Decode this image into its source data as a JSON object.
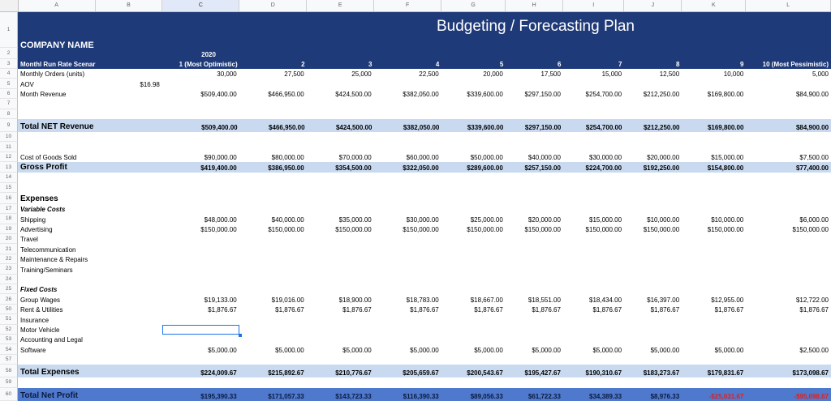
{
  "columns": [
    "A",
    "B",
    "C",
    "D",
    "E",
    "F",
    "G",
    "H",
    "I",
    "J",
    "K",
    "L"
  ],
  "title": "Budgeting / Forecasting Plan",
  "company": "COMPANY NAME",
  "year": "2020",
  "rows": [
    {
      "n": "1",
      "type": "header"
    },
    {
      "n": "2",
      "type": "header"
    },
    {
      "n": "3",
      "type": "header",
      "a": "Monthl Run Rate Scenarios",
      "vals": [
        "1 (Most Optimistic)",
        "2",
        "3",
        "4",
        "5",
        "6",
        "7",
        "8",
        "9",
        "10 (Most Pessimistic)"
      ]
    },
    {
      "n": "4",
      "a": "Monthly Orders (units)",
      "vals": [
        "30,000",
        "27,500",
        "25,000",
        "22,500",
        "20,000",
        "17,500",
        "15,000",
        "12,500",
        "10,000",
        "5,000"
      ]
    },
    {
      "n": "5",
      "a": "AOV",
      "b": "$16.98",
      "vals": []
    },
    {
      "n": "6",
      "a": "Month Revenue",
      "vals": [
        "$509,400.00",
        "$466,950.00",
        "$424,500.00",
        "$382,050.00",
        "$339,600.00",
        "$297,150.00",
        "$254,700.00",
        "$212,250.00",
        "$169,800.00",
        "$84,900.00"
      ]
    },
    {
      "n": "7",
      "vals": []
    },
    {
      "n": "8",
      "vals": []
    },
    {
      "n": "9",
      "style": "band",
      "a": "Total NET Revenue",
      "vals": [
        "$509,400.00",
        "$466,950.00",
        "$424,500.00",
        "$382,050.00",
        "$339,600.00",
        "$297,150.00",
        "$254,700.00",
        "$212,250.00",
        "$169,800.00",
        "$84,900.00"
      ]
    },
    {
      "n": "10",
      "vals": []
    },
    {
      "n": "11",
      "vals": []
    },
    {
      "n": "12",
      "a": "Cost of Goods Sold",
      "vals": [
        "$90,000.00",
        "$80,000.00",
        "$70,000.00",
        "$60,000.00",
        "$50,000.00",
        "$40,000.00",
        "$30,000.00",
        "$20,000.00",
        "$15,000.00",
        "$7,500.00"
      ]
    },
    {
      "n": "13",
      "style": "band",
      "a": "Gross Profit",
      "vals": [
        "$419,400.00",
        "$386,950.00",
        "$354,500.00",
        "$322,050.00",
        "$289,600.00",
        "$257,150.00",
        "$224,700.00",
        "$192,250.00",
        "$154,800.00",
        "$77,400.00"
      ]
    },
    {
      "n": "14",
      "vals": []
    },
    {
      "n": "15",
      "vals": []
    },
    {
      "n": "16",
      "style": "bold",
      "a": "Expenses",
      "vals": []
    },
    {
      "n": "17",
      "style": "ital",
      "a": "Variable Costs",
      "vals": []
    },
    {
      "n": "18",
      "a": "Shipping",
      "vals": [
        "$48,000.00",
        "$40,000.00",
        "$35,000.00",
        "$30,000.00",
        "$25,000.00",
        "$20,000.00",
        "$15,000.00",
        "$10,000.00",
        "$10,000.00",
        "$6,000.00"
      ]
    },
    {
      "n": "19",
      "a": "Advertising",
      "vals": [
        "$150,000.00",
        "$150,000.00",
        "$150,000.00",
        "$150,000.00",
        "$150,000.00",
        "$150,000.00",
        "$150,000.00",
        "$150,000.00",
        "$150,000.00",
        "$150,000.00"
      ]
    },
    {
      "n": "20",
      "a": "Travel",
      "vals": []
    },
    {
      "n": "21",
      "a": "Telecommunication",
      "vals": []
    },
    {
      "n": "22",
      "a": "Maintenance & Repairs",
      "vals": []
    },
    {
      "n": "23",
      "a": "Training/Seminars",
      "vals": []
    },
    {
      "n": "24",
      "vals": []
    },
    {
      "n": "25",
      "style": "ital",
      "a": "Fixed Costs",
      "vals": []
    },
    {
      "n": "26",
      "a": "Group Wages",
      "vals": [
        "$19,133.00",
        "$19,016.00",
        "$18,900.00",
        "$18,783.00",
        "$18,667.00",
        "$18,551.00",
        "$18,434.00",
        "$16,397.00",
        "$12,955.00",
        "$12,722.00"
      ]
    },
    {
      "n": "50",
      "a": "Rent & Utilities",
      "vals": [
        "$1,876.67",
        "$1,876.67",
        "$1,876.67",
        "$1,876.67",
        "$1,876.67",
        "$1,876.67",
        "$1,876.67",
        "$1,876.67",
        "$1,876.67",
        "$1,876.67"
      ]
    },
    {
      "n": "51",
      "a": "Insurance",
      "vals": []
    },
    {
      "n": "52",
      "a": "Motor Vehicle",
      "vals": [],
      "selected": true
    },
    {
      "n": "53",
      "a": "Accounting and Legal",
      "vals": []
    },
    {
      "n": "54",
      "a": "Software",
      "vals": [
        "$5,000.00",
        "$5,000.00",
        "$5,000.00",
        "$5,000.00",
        "$5,000.00",
        "$5,000.00",
        "$5,000.00",
        "$5,000.00",
        "$5,000.00",
        "$2,500.00"
      ]
    },
    {
      "n": "57",
      "vals": []
    },
    {
      "n": "58",
      "style": "band",
      "a": "Total Expenses",
      "vals": [
        "$224,009.67",
        "$215,892.67",
        "$210,776.67",
        "$205,659.67",
        "$200,543.67",
        "$195,427.67",
        "$190,310.67",
        "$183,273.67",
        "$179,831.67",
        "$173,098.67"
      ]
    },
    {
      "n": "59",
      "vals": []
    },
    {
      "n": "60",
      "style": "band2",
      "a": "Total Net Profit",
      "vals": [
        "$195,390.33",
        "$171,057.33",
        "$143,723.33",
        "$116,390.33",
        "$89,056.33",
        "$61,722.33",
        "$34,389.33",
        "$8,976.33",
        "-$25,031.67",
        "-$95,698.67"
      ]
    }
  ]
}
